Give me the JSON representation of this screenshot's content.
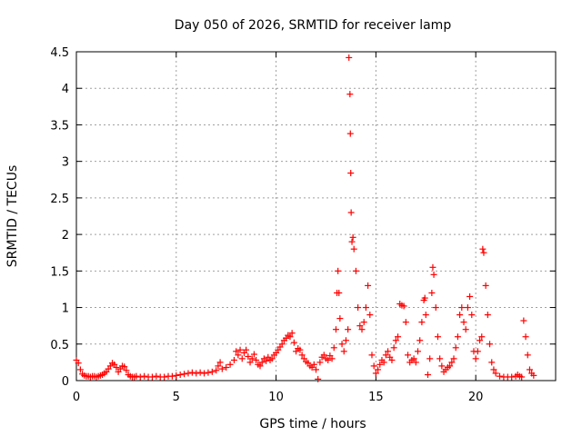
{
  "chart_data": {
    "type": "scatter",
    "title": "Day 050 of 2026, SRMTID for receiver lamp",
    "xlabel": "GPS time / hours",
    "ylabel": "SRMTID / TECUs",
    "xlim": [
      0,
      24
    ],
    "ylim": [
      0,
      4.5
    ],
    "xticks": [
      0,
      5,
      10,
      15,
      20
    ],
    "xtick_labels": [
      "0",
      "5",
      "10",
      "15",
      "20"
    ],
    "yticks": [
      0,
      0.5,
      1,
      1.5,
      2,
      2.5,
      3,
      3.5,
      4,
      4.5
    ],
    "ytick_labels": [
      "0",
      "0.5",
      "1",
      "1.5",
      "2",
      "2.5",
      "3",
      "3.5",
      "4",
      "4.5"
    ],
    "grid": true,
    "marker": "+",
    "color": "#ff0000",
    "series": [
      {
        "name": "SRMTID",
        "points": [
          [
            0.0,
            0.28
          ],
          [
            0.1,
            0.24
          ],
          [
            0.2,
            0.15
          ],
          [
            0.3,
            0.09
          ],
          [
            0.4,
            0.07
          ],
          [
            0.5,
            0.06
          ],
          [
            0.6,
            0.06
          ],
          [
            0.7,
            0.05
          ],
          [
            0.8,
            0.06
          ],
          [
            0.9,
            0.06
          ],
          [
            1.0,
            0.05
          ],
          [
            1.1,
            0.06
          ],
          [
            1.2,
            0.07
          ],
          [
            1.3,
            0.08
          ],
          [
            1.4,
            0.1
          ],
          [
            1.5,
            0.12
          ],
          [
            1.6,
            0.16
          ],
          [
            1.7,
            0.2
          ],
          [
            1.8,
            0.24
          ],
          [
            1.9,
            0.22
          ],
          [
            2.0,
            0.18
          ],
          [
            2.1,
            0.12
          ],
          [
            2.2,
            0.16
          ],
          [
            2.3,
            0.2
          ],
          [
            2.4,
            0.19
          ],
          [
            2.5,
            0.14
          ],
          [
            2.6,
            0.08
          ],
          [
            2.7,
            0.06
          ],
          [
            2.8,
            0.05
          ],
          [
            2.9,
            0.05
          ],
          [
            3.0,
            0.06
          ],
          [
            3.2,
            0.05
          ],
          [
            3.4,
            0.06
          ],
          [
            3.6,
            0.05
          ],
          [
            3.8,
            0.05
          ],
          [
            4.0,
            0.06
          ],
          [
            4.2,
            0.05
          ],
          [
            4.4,
            0.05
          ],
          [
            4.6,
            0.06
          ],
          [
            4.8,
            0.06
          ],
          [
            5.0,
            0.07
          ],
          [
            5.2,
            0.08
          ],
          [
            5.4,
            0.09
          ],
          [
            5.6,
            0.1
          ],
          [
            5.8,
            0.11
          ],
          [
            6.0,
            0.1
          ],
          [
            6.2,
            0.11
          ],
          [
            6.4,
            0.1
          ],
          [
            6.6,
            0.11
          ],
          [
            6.8,
            0.12
          ],
          [
            7.0,
            0.14
          ],
          [
            7.1,
            0.2
          ],
          [
            7.2,
            0.25
          ],
          [
            7.3,
            0.16
          ],
          [
            7.5,
            0.18
          ],
          [
            7.7,
            0.22
          ],
          [
            7.9,
            0.28
          ],
          [
            8.0,
            0.4
          ],
          [
            8.1,
            0.35
          ],
          [
            8.2,
            0.42
          ],
          [
            8.3,
            0.3
          ],
          [
            8.4,
            0.38
          ],
          [
            8.5,
            0.42
          ],
          [
            8.6,
            0.33
          ],
          [
            8.7,
            0.25
          ],
          [
            8.8,
            0.3
          ],
          [
            8.9,
            0.36
          ],
          [
            9.0,
            0.28
          ],
          [
            9.1,
            0.22
          ],
          [
            9.2,
            0.2
          ],
          [
            9.3,
            0.25
          ],
          [
            9.4,
            0.3
          ],
          [
            9.5,
            0.27
          ],
          [
            9.6,
            0.32
          ],
          [
            9.7,
            0.28
          ],
          [
            9.8,
            0.3
          ],
          [
            9.9,
            0.35
          ],
          [
            10.0,
            0.38
          ],
          [
            10.1,
            0.42
          ],
          [
            10.2,
            0.46
          ],
          [
            10.3,
            0.5
          ],
          [
            10.4,
            0.55
          ],
          [
            10.5,
            0.58
          ],
          [
            10.6,
            0.62
          ],
          [
            10.7,
            0.6
          ],
          [
            10.8,
            0.65
          ],
          [
            10.9,
            0.52
          ],
          [
            11.0,
            0.4
          ],
          [
            11.1,
            0.44
          ],
          [
            11.2,
            0.42
          ],
          [
            11.3,
            0.35
          ],
          [
            11.4,
            0.3
          ],
          [
            11.5,
            0.26
          ],
          [
            11.6,
            0.24
          ],
          [
            11.7,
            0.2
          ],
          [
            11.8,
            0.18
          ],
          [
            11.9,
            0.22
          ],
          [
            12.0,
            0.15
          ],
          [
            12.1,
            0.02
          ],
          [
            12.2,
            0.25
          ],
          [
            12.3,
            0.32
          ],
          [
            12.4,
            0.35
          ],
          [
            12.5,
            0.3
          ],
          [
            12.6,
            0.28
          ],
          [
            12.7,
            0.34
          ],
          [
            12.8,
            0.3
          ],
          [
            12.9,
            0.45
          ],
          [
            13.0,
            0.7
          ],
          [
            13.05,
            1.2
          ],
          [
            13.1,
            1.5
          ],
          [
            13.15,
            1.2
          ],
          [
            13.2,
            0.85
          ],
          [
            13.3,
            0.5
          ],
          [
            13.4,
            0.4
          ],
          [
            13.5,
            0.55
          ],
          [
            13.6,
            0.7
          ],
          [
            13.65,
            4.42
          ],
          [
            13.7,
            3.92
          ],
          [
            13.72,
            3.38
          ],
          [
            13.74,
            2.84
          ],
          [
            13.76,
            2.3
          ],
          [
            13.8,
            1.9
          ],
          [
            13.85,
            1.96
          ],
          [
            13.9,
            1.8
          ],
          [
            14.0,
            1.5
          ],
          [
            14.1,
            1.0
          ],
          [
            14.2,
            0.75
          ],
          [
            14.3,
            0.7
          ],
          [
            14.4,
            0.8
          ],
          [
            14.5,
            1.0
          ],
          [
            14.6,
            1.3
          ],
          [
            14.7,
            0.9
          ],
          [
            14.8,
            0.35
          ],
          [
            14.9,
            0.2
          ],
          [
            15.0,
            0.1
          ],
          [
            15.1,
            0.15
          ],
          [
            15.2,
            0.22
          ],
          [
            15.3,
            0.28
          ],
          [
            15.4,
            0.25
          ],
          [
            15.5,
            0.35
          ],
          [
            15.6,
            0.4
          ],
          [
            15.7,
            0.32
          ],
          [
            15.8,
            0.28
          ],
          [
            15.9,
            0.45
          ],
          [
            16.0,
            0.55
          ],
          [
            16.1,
            0.6
          ],
          [
            16.2,
            1.05
          ],
          [
            16.3,
            1.03
          ],
          [
            16.4,
            1.02
          ],
          [
            16.5,
            0.8
          ],
          [
            16.6,
            0.35
          ],
          [
            16.7,
            0.25
          ],
          [
            16.8,
            0.28
          ],
          [
            16.9,
            0.3
          ],
          [
            17.0,
            0.25
          ],
          [
            17.1,
            0.4
          ],
          [
            17.2,
            0.55
          ],
          [
            17.3,
            0.8
          ],
          [
            17.4,
            1.1
          ],
          [
            17.45,
            1.13
          ],
          [
            17.5,
            0.9
          ],
          [
            17.6,
            0.08
          ],
          [
            17.7,
            0.3
          ],
          [
            17.8,
            1.2
          ],
          [
            17.85,
            1.55
          ],
          [
            17.9,
            1.45
          ],
          [
            18.0,
            1.0
          ],
          [
            18.1,
            0.6
          ],
          [
            18.2,
            0.3
          ],
          [
            18.3,
            0.2
          ],
          [
            18.4,
            0.12
          ],
          [
            18.5,
            0.15
          ],
          [
            18.6,
            0.18
          ],
          [
            18.7,
            0.2
          ],
          [
            18.8,
            0.25
          ],
          [
            18.9,
            0.3
          ],
          [
            19.0,
            0.45
          ],
          [
            19.1,
            0.6
          ],
          [
            19.2,
            0.9
          ],
          [
            19.3,
            1.0
          ],
          [
            19.4,
            0.8
          ],
          [
            19.5,
            0.7
          ],
          [
            19.6,
            1.0
          ],
          [
            19.7,
            1.15
          ],
          [
            19.8,
            0.9
          ],
          [
            19.9,
            0.4
          ],
          [
            20.0,
            0.3
          ],
          [
            20.1,
            0.4
          ],
          [
            20.2,
            0.55
          ],
          [
            20.3,
            0.6
          ],
          [
            20.35,
            1.8
          ],
          [
            20.4,
            1.75
          ],
          [
            20.5,
            1.3
          ],
          [
            20.6,
            0.9
          ],
          [
            20.7,
            0.5
          ],
          [
            20.8,
            0.25
          ],
          [
            20.9,
            0.15
          ],
          [
            21.0,
            0.1
          ],
          [
            21.2,
            0.06
          ],
          [
            21.4,
            0.05
          ],
          [
            21.6,
            0.05
          ],
          [
            21.8,
            0.05
          ],
          [
            22.0,
            0.06
          ],
          [
            22.1,
            0.08
          ],
          [
            22.2,
            0.06
          ],
          [
            22.3,
            0.05
          ],
          [
            22.4,
            0.82
          ],
          [
            22.5,
            0.6
          ],
          [
            22.6,
            0.35
          ],
          [
            22.7,
            0.15
          ],
          [
            22.8,
            0.1
          ],
          [
            22.9,
            0.07
          ]
        ]
      }
    ]
  }
}
